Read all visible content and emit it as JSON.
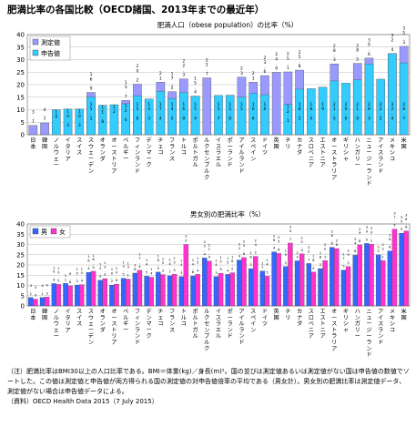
{
  "title": "肥満比率の各国比較（OECD諸国、2013年までの最近年）",
  "countries": [
    "日本",
    "韓国",
    "ノルウェー",
    "イタリア",
    "スイス",
    "スウェーデン",
    "オランダ",
    "オーストリア",
    "ベルギー",
    "フィンランド",
    "デンマーク",
    "チェコ",
    "フランス",
    "トルコ",
    "ポルトガル",
    "ルクセンブルク",
    "イスラエル",
    "ポーランド",
    "アイルランド",
    "スペイン",
    "ドイツ",
    "英国",
    "チリ",
    "カナダ",
    "スロベニア",
    "エストニア",
    "オーストラリア",
    "ギリシャ",
    "ハンガリー",
    "ニュージーランド",
    "アイスランド",
    "メキシコ",
    "米国"
  ],
  "chart_data": [
    {
      "type": "bar",
      "title": "肥満人口（obese population）の比率（%）",
      "categories": [
        "日本",
        "韓国",
        "ノルウェー",
        "イタリア",
        "スイス",
        "スウェーデン",
        "オランダ",
        "オーストリア",
        "ベルギー",
        "フィンランド",
        "デンマーク",
        "チェコ",
        "フランス",
        "トルコ",
        "ポルトガル",
        "ルクセンブルク",
        "イスラエル",
        "ポーランド",
        "アイルランド",
        "スペイン",
        "ドイツ",
        "英国",
        "チリ",
        "カナダ",
        "スロベニア",
        "エストニア",
        "オーストラリア",
        "ギリシャ",
        "ハンガリー",
        "ニュージーランド",
        "アイスランド",
        "メキシコ",
        "米国"
      ],
      "ylim": [
        0,
        40
      ],
      "yticks": [
        0,
        5,
        10,
        15,
        20,
        25,
        30,
        35,
        40
      ],
      "legend_position": "top-left",
      "series": [
        {
          "name": "測定値",
          "color": "#9999ff",
          "values": [
            3.7,
            4.7,
            null,
            null,
            null,
            16.9,
            null,
            null,
            13.7,
            20.2,
            null,
            21.0,
            17.2,
            22.3,
            15.4,
            22.7,
            null,
            null,
            23.0,
            21.0,
            23.6,
            24.9,
            25.1,
            25.8,
            null,
            null,
            28.3,
            null,
            28.5,
            30.6,
            null,
            32.4,
            35.3
          ]
        },
        {
          "name": "申告値",
          "color": "#33ccff",
          "values": [
            null,
            null,
            10.0,
            10.3,
            10.3,
            15.1,
            11.8,
            12.0,
            12.4,
            15.6,
            14.3,
            17.4,
            14.5,
            16.9,
            15.4,
            null,
            15.7,
            15.8,
            15.0,
            16.6,
            16.0,
            null,
            12.1,
            18.2,
            18.4,
            19.0,
            21.5,
            20.6,
            21.9,
            28.3,
            22.2,
            32.4,
            28.7
          ]
        }
      ]
    },
    {
      "type": "bar",
      "title": "男女別の肥満比率（%）",
      "categories": [
        "日本",
        "韓国",
        "ノルウェー",
        "イタリア",
        "スイス",
        "スウェーデン",
        "オランダ",
        "オーストリア",
        "ベルギー",
        "フィンランド",
        "デンマーク",
        "チェコ",
        "フランス",
        "トルコ",
        "ポルトガル",
        "ルクセンブルク",
        "イスラエル",
        "ポーランド",
        "アイルランド",
        "スペイン",
        "ドイツ",
        "英国",
        "チリ",
        "カナダ",
        "スロベニア",
        "エストニア",
        "オーストラリア",
        "ギリシャ",
        "ハンガリー",
        "ニュージーランド",
        "アイスランド",
        "メキシコ",
        "米国"
      ],
      "ylim": [
        0,
        40
      ],
      "yticks": [
        0,
        5,
        10,
        15,
        20,
        25,
        30,
        35,
        40
      ],
      "legend_position": "top-left",
      "series": [
        {
          "name": "男",
          "color": "#3366ff",
          "values": [
            4.1,
            4.1,
            10.9,
            11.0,
            10.2,
            16.4,
            12.5,
            10.2,
            13.5,
            16.0,
            14.5,
            16.5,
            14.7,
            14.3,
            14.6,
            23.4,
            14.3,
            15.4,
            22.4,
            18.2,
            17.0,
            26.4,
            19.2,
            22.0,
            20.7,
            18.2,
            28.6,
            17.5,
            24.8,
            30.5,
            25.0,
            26.8,
            35.5
          ]
        },
        {
          "name": "女",
          "color": "#ff33cc",
          "values": [
            3.3,
            4.3,
            10.5,
            9.8,
            10.4,
            16.9,
            13.3,
            10.6,
            13.1,
            17.4,
            14.0,
            15.3,
            15.5,
            30.0,
            15.4,
            21.9,
            15.9,
            16.2,
            23.6,
            24.2,
            14.5,
            25.6,
            30.7,
            25.4,
            16.5,
            22.1,
            28.0,
            19.2,
            29.8,
            30.1,
            22.1,
            37.5,
            36.6
          ]
        }
      ]
    }
  ],
  "notes": [
    "（注）肥満比率はBMI30以上の人口比率である。BMI＝体重(kg)／身長(m)²。国の並びは測定値あるいは測定値がない国は申告値の数値でソートした。この値は測定値と申告値が両方得られる国の測定値の対申告値倍率の平均である（男女計）。男女別の肥満比率は測定値データ、測定値がない場合は申告値データによる。",
    "（資料）OECD Health Data 2015（7 July 2015）"
  ]
}
